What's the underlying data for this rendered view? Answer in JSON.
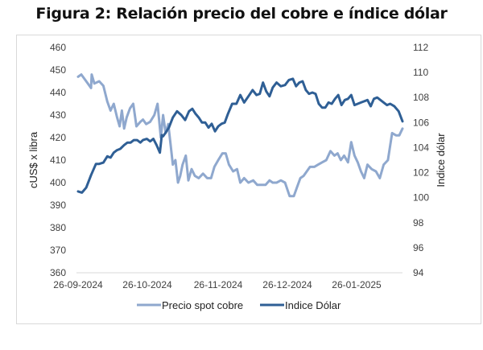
{
  "figure": {
    "title": "Figura 2: Relación precio del cobre e índice dólar"
  },
  "chart_data": {
    "type": "line",
    "title": "Figura 2: Relación precio del cobre e índice dólar",
    "xlabel": "",
    "ylabel": "cUS$ x libra",
    "y2label": "Indice dólar",
    "x_ticks": [
      "26-09-2024",
      "26-10-2024",
      "26-11-2024",
      "26-12-2024",
      "26-01-2025"
    ],
    "x_range": [
      "26-09-2024",
      "2025-02-28"
    ],
    "ylim": [
      360,
      460
    ],
    "y_ticks": [
      460,
      450,
      440,
      430,
      420,
      410,
      400,
      390,
      380,
      370,
      360
    ],
    "y2lim": [
      94,
      112
    ],
    "y2_ticks": [
      112,
      110,
      108,
      106,
      104,
      102,
      100,
      98,
      96,
      94
    ],
    "grid": false,
    "legend_position": "bottom",
    "x_fraction_note": "x values are fractions of elapsed time across the plotted period (0 = 26-09-2024)",
    "series": [
      {
        "name": "Precio spot cobre",
        "axis": "left",
        "color": "#8FA8CE",
        "x": [
          0.0,
          0.01,
          0.025,
          0.04,
          0.042,
          0.05,
          0.065,
          0.078,
          0.09,
          0.1,
          0.11,
          0.12,
          0.128,
          0.135,
          0.142,
          0.15,
          0.16,
          0.17,
          0.18,
          0.192,
          0.2,
          0.21,
          0.222,
          0.235,
          0.245,
          0.255,
          0.262,
          0.27,
          0.278,
          0.285,
          0.292,
          0.3,
          0.308,
          0.315,
          0.322,
          0.332,
          0.34,
          0.35,
          0.36,
          0.372,
          0.385,
          0.398,
          0.41,
          0.42,
          0.432,
          0.445,
          0.455,
          0.465,
          0.478,
          0.49,
          0.5,
          0.512,
          0.525,
          0.54,
          0.552,
          0.565,
          0.578,
          0.59,
          0.6,
          0.612,
          0.625,
          0.638,
          0.652,
          0.665,
          0.675,
          0.685,
          0.695,
          0.705,
          0.715,
          0.728,
          0.74,
          0.752,
          0.765,
          0.778,
          0.79,
          0.8,
          0.81,
          0.82,
          0.832,
          0.842,
          0.852,
          0.862,
          0.872,
          0.882,
          0.892,
          0.905,
          0.918,
          0.93,
          0.942,
          0.955,
          0.968,
          0.98,
          0.99,
          1.0
        ],
        "values": [
          447,
          448,
          445,
          442,
          448,
          444,
          445,
          443,
          436,
          432,
          435,
          429,
          425,
          432,
          424,
          429,
          433,
          435,
          425,
          427,
          428,
          426,
          427,
          430,
          435,
          420,
          430,
          422,
          426,
          417,
          408,
          410,
          400,
          403,
          408,
          412,
          401,
          406,
          403,
          402,
          404,
          402,
          402,
          407,
          410,
          413,
          413,
          408,
          405,
          406,
          400,
          402,
          400,
          401,
          399,
          399,
          399,
          401,
          400,
          400,
          401,
          400,
          394,
          394,
          398,
          402,
          403,
          405,
          407,
          407,
          408,
          409,
          410,
          414,
          412,
          413,
          410,
          412,
          409,
          418,
          412,
          409,
          405,
          402,
          408,
          406,
          405,
          402,
          408,
          410,
          422,
          421,
          421,
          424
        ]
      },
      {
        "name": "Indice Dólar",
        "axis": "right",
        "color": "#2F5F95",
        "x": [
          0.0,
          0.012,
          0.025,
          0.04,
          0.055,
          0.065,
          0.078,
          0.09,
          0.1,
          0.11,
          0.12,
          0.13,
          0.142,
          0.152,
          0.162,
          0.172,
          0.182,
          0.192,
          0.2,
          0.212,
          0.222,
          0.232,
          0.242,
          0.252,
          0.258,
          0.262,
          0.27,
          0.28,
          0.292,
          0.305,
          0.318,
          0.33,
          0.342,
          0.352,
          0.362,
          0.372,
          0.382,
          0.392,
          0.402,
          0.412,
          0.422,
          0.432,
          0.442,
          0.452,
          0.462,
          0.475,
          0.488,
          0.5,
          0.512,
          0.525,
          0.538,
          0.55,
          0.56,
          0.57,
          0.58,
          0.59,
          0.6,
          0.612,
          0.625,
          0.638,
          0.65,
          0.662,
          0.672,
          0.682,
          0.692,
          0.702,
          0.712,
          0.722,
          0.732,
          0.742,
          0.752,
          0.762,
          0.772,
          0.782,
          0.792,
          0.802,
          0.812,
          0.822,
          0.832,
          0.842,
          0.852,
          0.862,
          0.872,
          0.882,
          0.892,
          0.902,
          0.912,
          0.922,
          0.932,
          0.942,
          0.952,
          0.962,
          0.975,
          0.988,
          1.0
        ],
        "values": [
          100.5,
          100.4,
          100.8,
          101.8,
          102.7,
          102.7,
          102.8,
          103.3,
          103.2,
          103.6,
          103.8,
          103.9,
          104.2,
          104.4,
          104.4,
          104.6,
          104.6,
          104.4,
          104.6,
          104.7,
          104.5,
          104.7,
          104.2,
          103.6,
          105.0,
          104.9,
          105.2,
          105.6,
          106.4,
          106.9,
          106.6,
          106.2,
          106.9,
          107.1,
          106.7,
          106.4,
          106.0,
          106.0,
          105.6,
          105.9,
          105.3,
          105.7,
          105.9,
          106.0,
          106.7,
          107.5,
          107.5,
          108.2,
          107.6,
          108.1,
          108.6,
          108.2,
          108.3,
          109.2,
          108.5,
          108.1,
          108.8,
          109.2,
          108.9,
          109.0,
          109.4,
          109.5,
          108.9,
          109.2,
          109.3,
          108.6,
          108.3,
          108.4,
          108.3,
          107.5,
          107.2,
          107.2,
          107.6,
          107.5,
          107.9,
          108.2,
          107.4,
          107.8,
          107.9,
          108.2,
          107.4,
          107.5,
          107.6,
          107.7,
          107.8,
          107.3,
          107.9,
          108.0,
          107.8,
          107.6,
          107.4,
          107.5,
          107.3,
          106.9,
          106.1
        ]
      }
    ]
  }
}
